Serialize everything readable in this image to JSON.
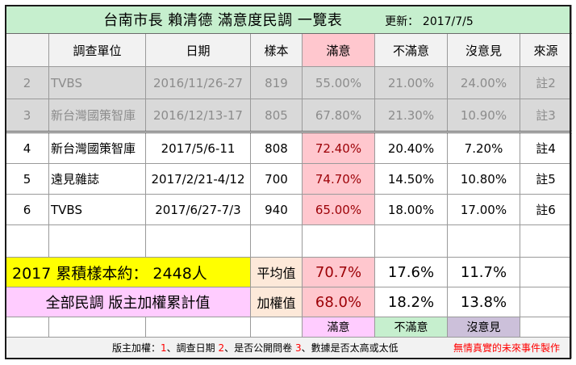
{
  "title": "台南市長 賴清德  滿意度民調 一覽表",
  "updated_label": "更新：",
  "updated_date": "2017/7/5",
  "headers": [
    "",
    "調查單位",
    "日期",
    "樣本",
    "滿意",
    "不滿意",
    "沒意見",
    "來源"
  ],
  "rows": [
    {
      "no": "2",
      "org": "TVBS",
      "date": "2016/11/26-27",
      "sample": "819",
      "sat": "55.00%",
      "unsat": "21.00%",
      "none": "24.00%",
      "src": "註2"
    },
    {
      "no": "3",
      "org": "新台灣國策智庫",
      "date": "2016/12/13-17",
      "sample": "805",
      "sat": "67.80%",
      "unsat": "21.30%",
      "none": "10.90%",
      "src": "註3"
    },
    {
      "no": "4",
      "org": "新台灣國策智庫",
      "date": "2017/5/6-11",
      "sample": "808",
      "sat": "72.40%",
      "unsat": "20.40%",
      "none": "7.20%",
      "src": "註4"
    },
    {
      "no": "5",
      "org": "遠見雜誌",
      "date": "2017/2/21-4/12",
      "sample": "700",
      "sat": "74.70%",
      "unsat": "14.50%",
      "none": "10.80%",
      "src": "註5"
    },
    {
      "no": "6",
      "org": "TVBS",
      "date": "2017/6/27-7/3",
      "sample": "940",
      "sat": "65.00%",
      "unsat": "18.00%",
      "none": "17.00%",
      "src": "註6"
    }
  ],
  "summary": {
    "cumulative_label": "2017 累積樣本約： 2448人",
    "avg_label": "平均值",
    "avg": {
      "sat": "70.7%",
      "unsat": "17.6%",
      "none": "11.7%"
    },
    "weighted_title": "全部民調 版主加權累計值",
    "weighted_label": "加權值",
    "weighted": {
      "sat": "68.0%",
      "unsat": "18.2%",
      "none": "13.8%"
    }
  },
  "legend": {
    "sat": "滿意",
    "unsat": "不滿意",
    "none": "沒意見"
  },
  "footer": {
    "prefix": "版主加權：",
    "n1": "1",
    "t1": "、調查日期  ",
    "n2": "2",
    "t2": "、是否公開問卷 ",
    "n3": "3",
    "t3": "、數據是否太高或太低",
    "credit": "無情真實的未來事件製作"
  },
  "colors": {
    "title_bg": "#c6efce",
    "sat_bg": "#ffc7ce",
    "sat_text": "#9c0006",
    "cumulative_bg": "#ffff00",
    "weighted_bg": "#ffccff",
    "label_bg": "#fde9d9",
    "unsat_legend_bg": "#c6efce",
    "none_legend_bg": "#ccc0da",
    "grey_row_bg": "#d9d9d9",
    "footer_red": "#ff0000"
  }
}
